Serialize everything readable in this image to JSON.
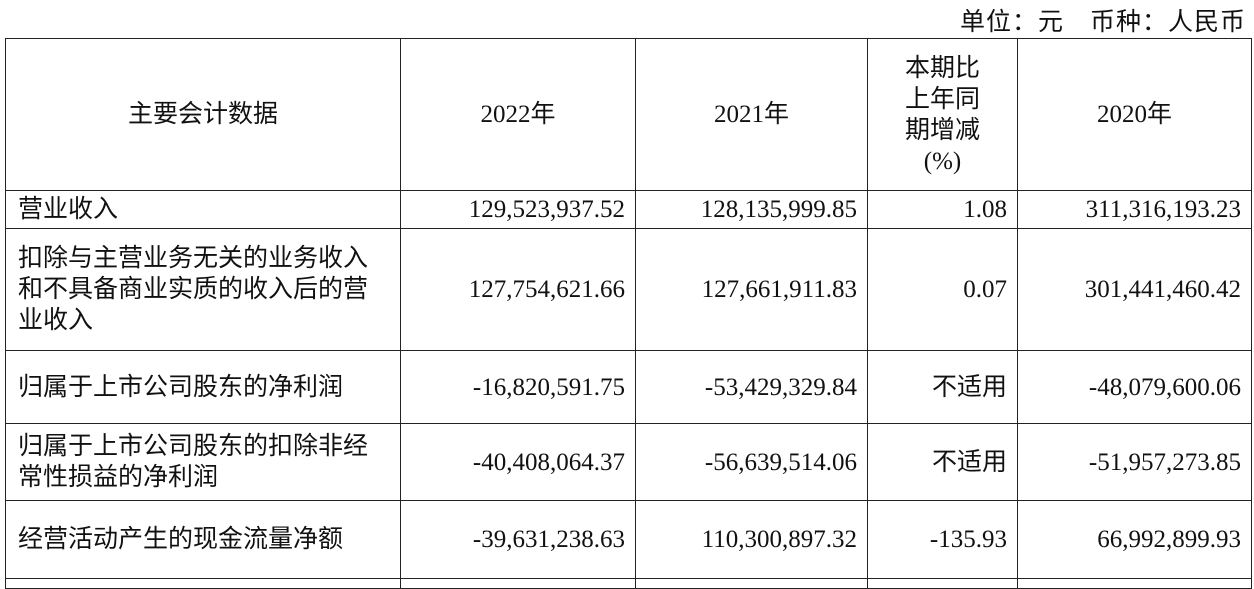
{
  "unit_note": "单位：元　币种：人民币",
  "headers": [
    "主要会计数据",
    "2022年",
    "2021年",
    "本期比上年同期增减(%)",
    "2020年"
  ],
  "header_change_lines": [
    "本期比",
    "上年同",
    "期增减",
    "(%)"
  ],
  "rows": [
    {
      "label": "营业收入",
      "y2022": "129,523,937.52",
      "y2021": "128,135,999.85",
      "change": "1.08",
      "y2020": "311,316,193.23"
    },
    {
      "label": "扣除与主营业务无关的业务收入和不具备商业实质的收入后的营业收入",
      "y2022": "127,754,621.66",
      "y2021": "127,661,911.83",
      "change": "0.07",
      "y2020": "301,441,460.42"
    },
    {
      "label": "归属于上市公司股东的净利润",
      "y2022": "-16,820,591.75",
      "y2021": "-53,429,329.84",
      "change": "不适用",
      "y2020": "-48,079,600.06"
    },
    {
      "label": "归属于上市公司股东的扣除非经常性损益的净利润",
      "y2022": "-40,408,064.37",
      "y2021": "-56,639,514.06",
      "change": "不适用",
      "y2020": "-51,957,273.85"
    },
    {
      "label": "经营活动产生的现金流量净额",
      "y2022": "-39,631,238.63",
      "y2021": "110,300,897.32",
      "change": "-135.93",
      "y2020": "66,992,899.93"
    }
  ]
}
